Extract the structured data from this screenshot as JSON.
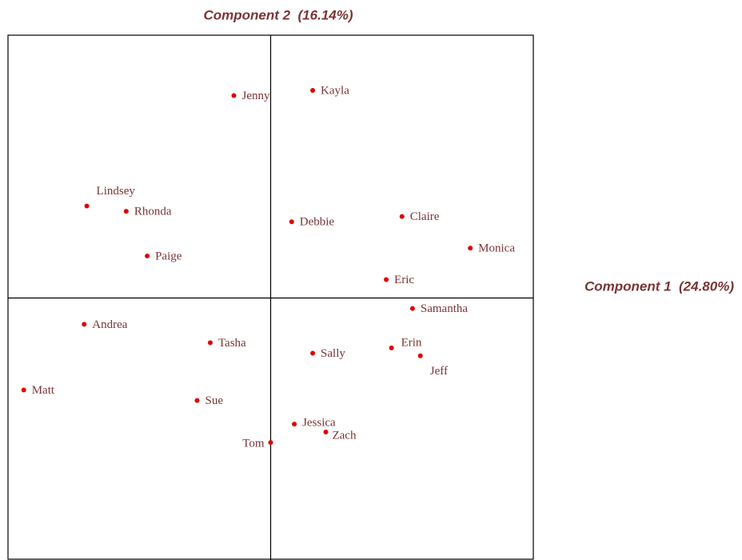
{
  "chart_data": {
    "type": "scatter",
    "x_label": "Component 1  (24.80%)",
    "y_label": "Component 2  (16.14%)",
    "xlim": [
      -1,
      1
    ],
    "ylim": [
      -1,
      1
    ],
    "color": "#e00000",
    "labels": [
      "Jenny",
      "Kayla",
      "Lindsey",
      "Rhonda",
      "Debbie",
      "Claire",
      "Monica",
      "Paige",
      "Eric",
      "Samantha",
      "Andrea",
      "Tasha",
      "Sally",
      "Erin",
      "Jeff",
      "Matt",
      "Sue",
      "Jessica",
      "Zach",
      "Tom"
    ],
    "x": [
      -0.14,
      0.16,
      -0.7,
      -0.55,
      0.08,
      0.5,
      0.76,
      -0.47,
      0.44,
      0.54,
      -0.71,
      -0.23,
      0.16,
      0.46,
      0.57,
      -0.94,
      -0.28,
      0.09,
      0.21,
      0.0
    ],
    "y": [
      0.77,
      0.79,
      0.35,
      0.33,
      0.29,
      0.31,
      0.19,
      0.16,
      0.07,
      -0.04,
      -0.1,
      -0.17,
      -0.21,
      -0.19,
      -0.22,
      -0.35,
      -0.39,
      -0.48,
      -0.51,
      -0.55
    ]
  }
}
